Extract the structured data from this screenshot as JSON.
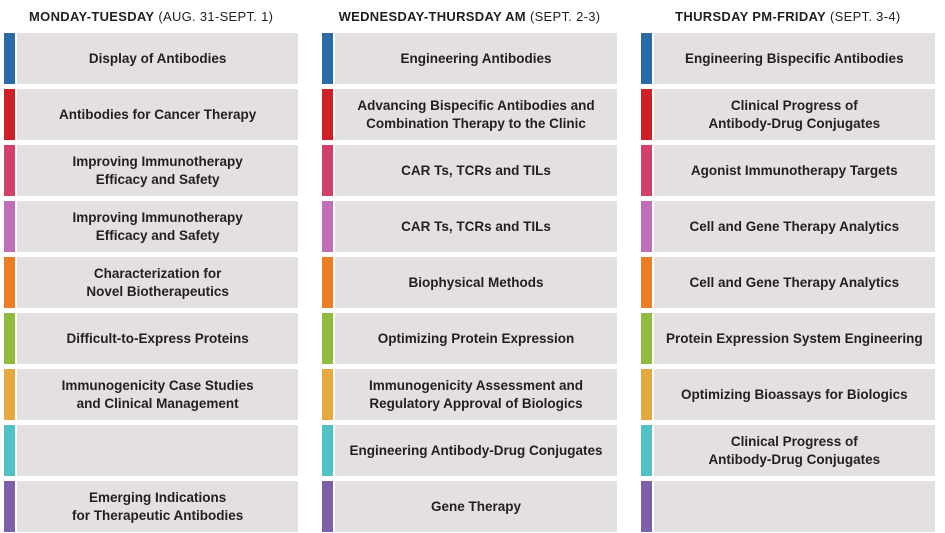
{
  "page": {
    "background": "#ffffff",
    "box_background": "#e3e0df",
    "text_color": "#231f20"
  },
  "track_colors": [
    "#2a6aa5",
    "#cf2027",
    "#d24069",
    "#bf6fb7",
    "#ee7e25",
    "#90ba40",
    "#e4aa41",
    "#50c2c4",
    "#7d5ea8"
  ],
  "columns": [
    {
      "header_bold": "MONDAY-TUESDAY",
      "header_regular": "(AUG. 31-SEPT. 1)",
      "rows": [
        {
          "label": "Display of Antibodies"
        },
        {
          "label": "Antibodies for Cancer Therapy"
        },
        {
          "label": "Improving Immunotherapy\nEfficacy and Safety"
        },
        {
          "label": "Improving Immunotherapy\nEfficacy and Safety"
        },
        {
          "label": "Characterization for\nNovel Biotherapeutics"
        },
        {
          "label": "Difficult-to-Express Proteins"
        },
        {
          "label": "Immunogenicity Case Studies\nand Clinical Management"
        },
        {
          "label": ""
        },
        {
          "label": "Emerging Indications\nfor Therapeutic Antibodies"
        }
      ]
    },
    {
      "header_bold": "WEDNESDAY-THURSDAY AM",
      "header_regular": "(SEPT. 2-3)",
      "rows": [
        {
          "label": "Engineering Antibodies"
        },
        {
          "label": "Advancing Bispecific Antibodies and\nCombination Therapy to the Clinic"
        },
        {
          "label": "CAR Ts, TCRs and TILs"
        },
        {
          "label": "CAR Ts, TCRs and TILs"
        },
        {
          "label": "Biophysical Methods"
        },
        {
          "label": "Optimizing Protein Expression"
        },
        {
          "label": "Immunogenicity Assessment and\nRegulatory Approval of Biologics"
        },
        {
          "label": "Engineering Antibody-Drug Conjugates"
        },
        {
          "label": "Gene Therapy"
        }
      ]
    },
    {
      "header_bold": "THURSDAY PM-FRIDAY",
      "header_regular": "(SEPT. 3-4)",
      "rows": [
        {
          "label": "Engineering Bispecific Antibodies"
        },
        {
          "label": "Clinical Progress of\nAntibody-Drug Conjugates"
        },
        {
          "label": "Agonist Immunotherapy Targets"
        },
        {
          "label": "Cell and Gene Therapy Analytics"
        },
        {
          "label": "Cell and Gene Therapy Analytics"
        },
        {
          "label": "Protein Expression System Engineering"
        },
        {
          "label": "Optimizing Bioassays for Biologics"
        },
        {
          "label": "Clinical Progress of\nAntibody-Drug Conjugates"
        },
        {
          "label": ""
        }
      ]
    }
  ]
}
